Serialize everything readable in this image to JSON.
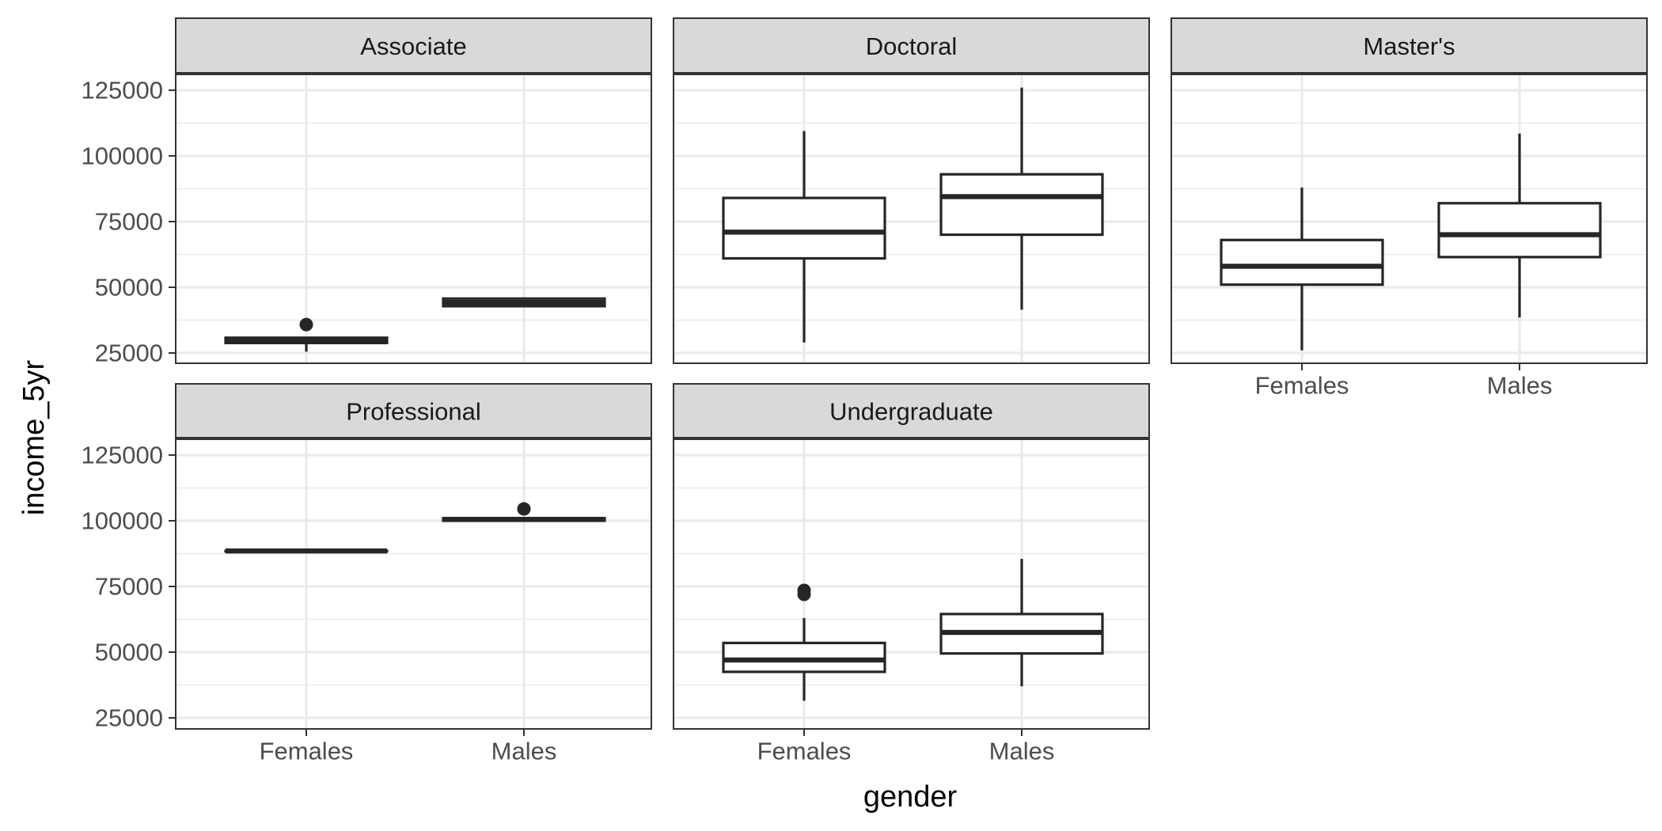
{
  "chart_data": {
    "type": "boxplot",
    "xlabel": "gender",
    "ylabel": "income_5yr",
    "ylim": [
      20000,
      150000
    ],
    "y_ticks": [
      25000,
      50000,
      75000,
      100000,
      125000
    ],
    "y_tick_labels": [
      "25000",
      "50000",
      "75000",
      "100000",
      "125000"
    ],
    "categories": [
      "Females",
      "Males"
    ],
    "grid": true,
    "facets": [
      {
        "label": "Associate",
        "boxes": [
          {
            "category": "Females",
            "whisker_low": 25500,
            "q1": 28800,
            "median": 29800,
            "q3": 30800,
            "whisker_high": 31000,
            "outliers": [
              35800
            ]
          },
          {
            "category": "Males",
            "whisker_low": 42500,
            "q1": 42800,
            "median": 44200,
            "q3": 45700,
            "whisker_high": 46000,
            "outliers": []
          }
        ]
      },
      {
        "label": "Doctoral",
        "boxes": [
          {
            "category": "Females",
            "whisker_low": 29000,
            "q1": 61000,
            "median": 71000,
            "q3": 84000,
            "whisker_high": 109500,
            "outliers": []
          },
          {
            "category": "Males",
            "whisker_low": 41500,
            "q1": 70000,
            "median": 84500,
            "q3": 93000,
            "whisker_high": 126000,
            "outliers": []
          }
        ]
      },
      {
        "label": "Master's",
        "boxes": [
          {
            "category": "Females",
            "whisker_low": 26000,
            "q1": 51000,
            "median": 58000,
            "q3": 68000,
            "whisker_high": 88000,
            "outliers": []
          },
          {
            "category": "Males",
            "whisker_low": 38500,
            "q1": 61500,
            "median": 70000,
            "q3": 82000,
            "whisker_high": 108500,
            "outliers": []
          }
        ]
      },
      {
        "label": "Professional",
        "boxes": [
          {
            "category": "Females",
            "whisker_low": 88500,
            "q1": 88500,
            "median": 88500,
            "q3": 88500,
            "whisker_high": 88500,
            "outliers": []
          },
          {
            "category": "Males",
            "whisker_low": 100000,
            "q1": 100000,
            "median": 100500,
            "q3": 101000,
            "whisker_high": 101000,
            "outliers": [
              104500
            ]
          }
        ]
      },
      {
        "label": "Undergraduate",
        "boxes": [
          {
            "category": "Females",
            "whisker_low": 31500,
            "q1": 42500,
            "median": 47000,
            "q3": 53500,
            "whisker_high": 63000,
            "outliers": [
              72000,
              73500
            ]
          },
          {
            "category": "Males",
            "whisker_low": 37000,
            "q1": 49500,
            "median": 57500,
            "q3": 64500,
            "whisker_high": 85500,
            "outliers": []
          }
        ]
      }
    ]
  }
}
